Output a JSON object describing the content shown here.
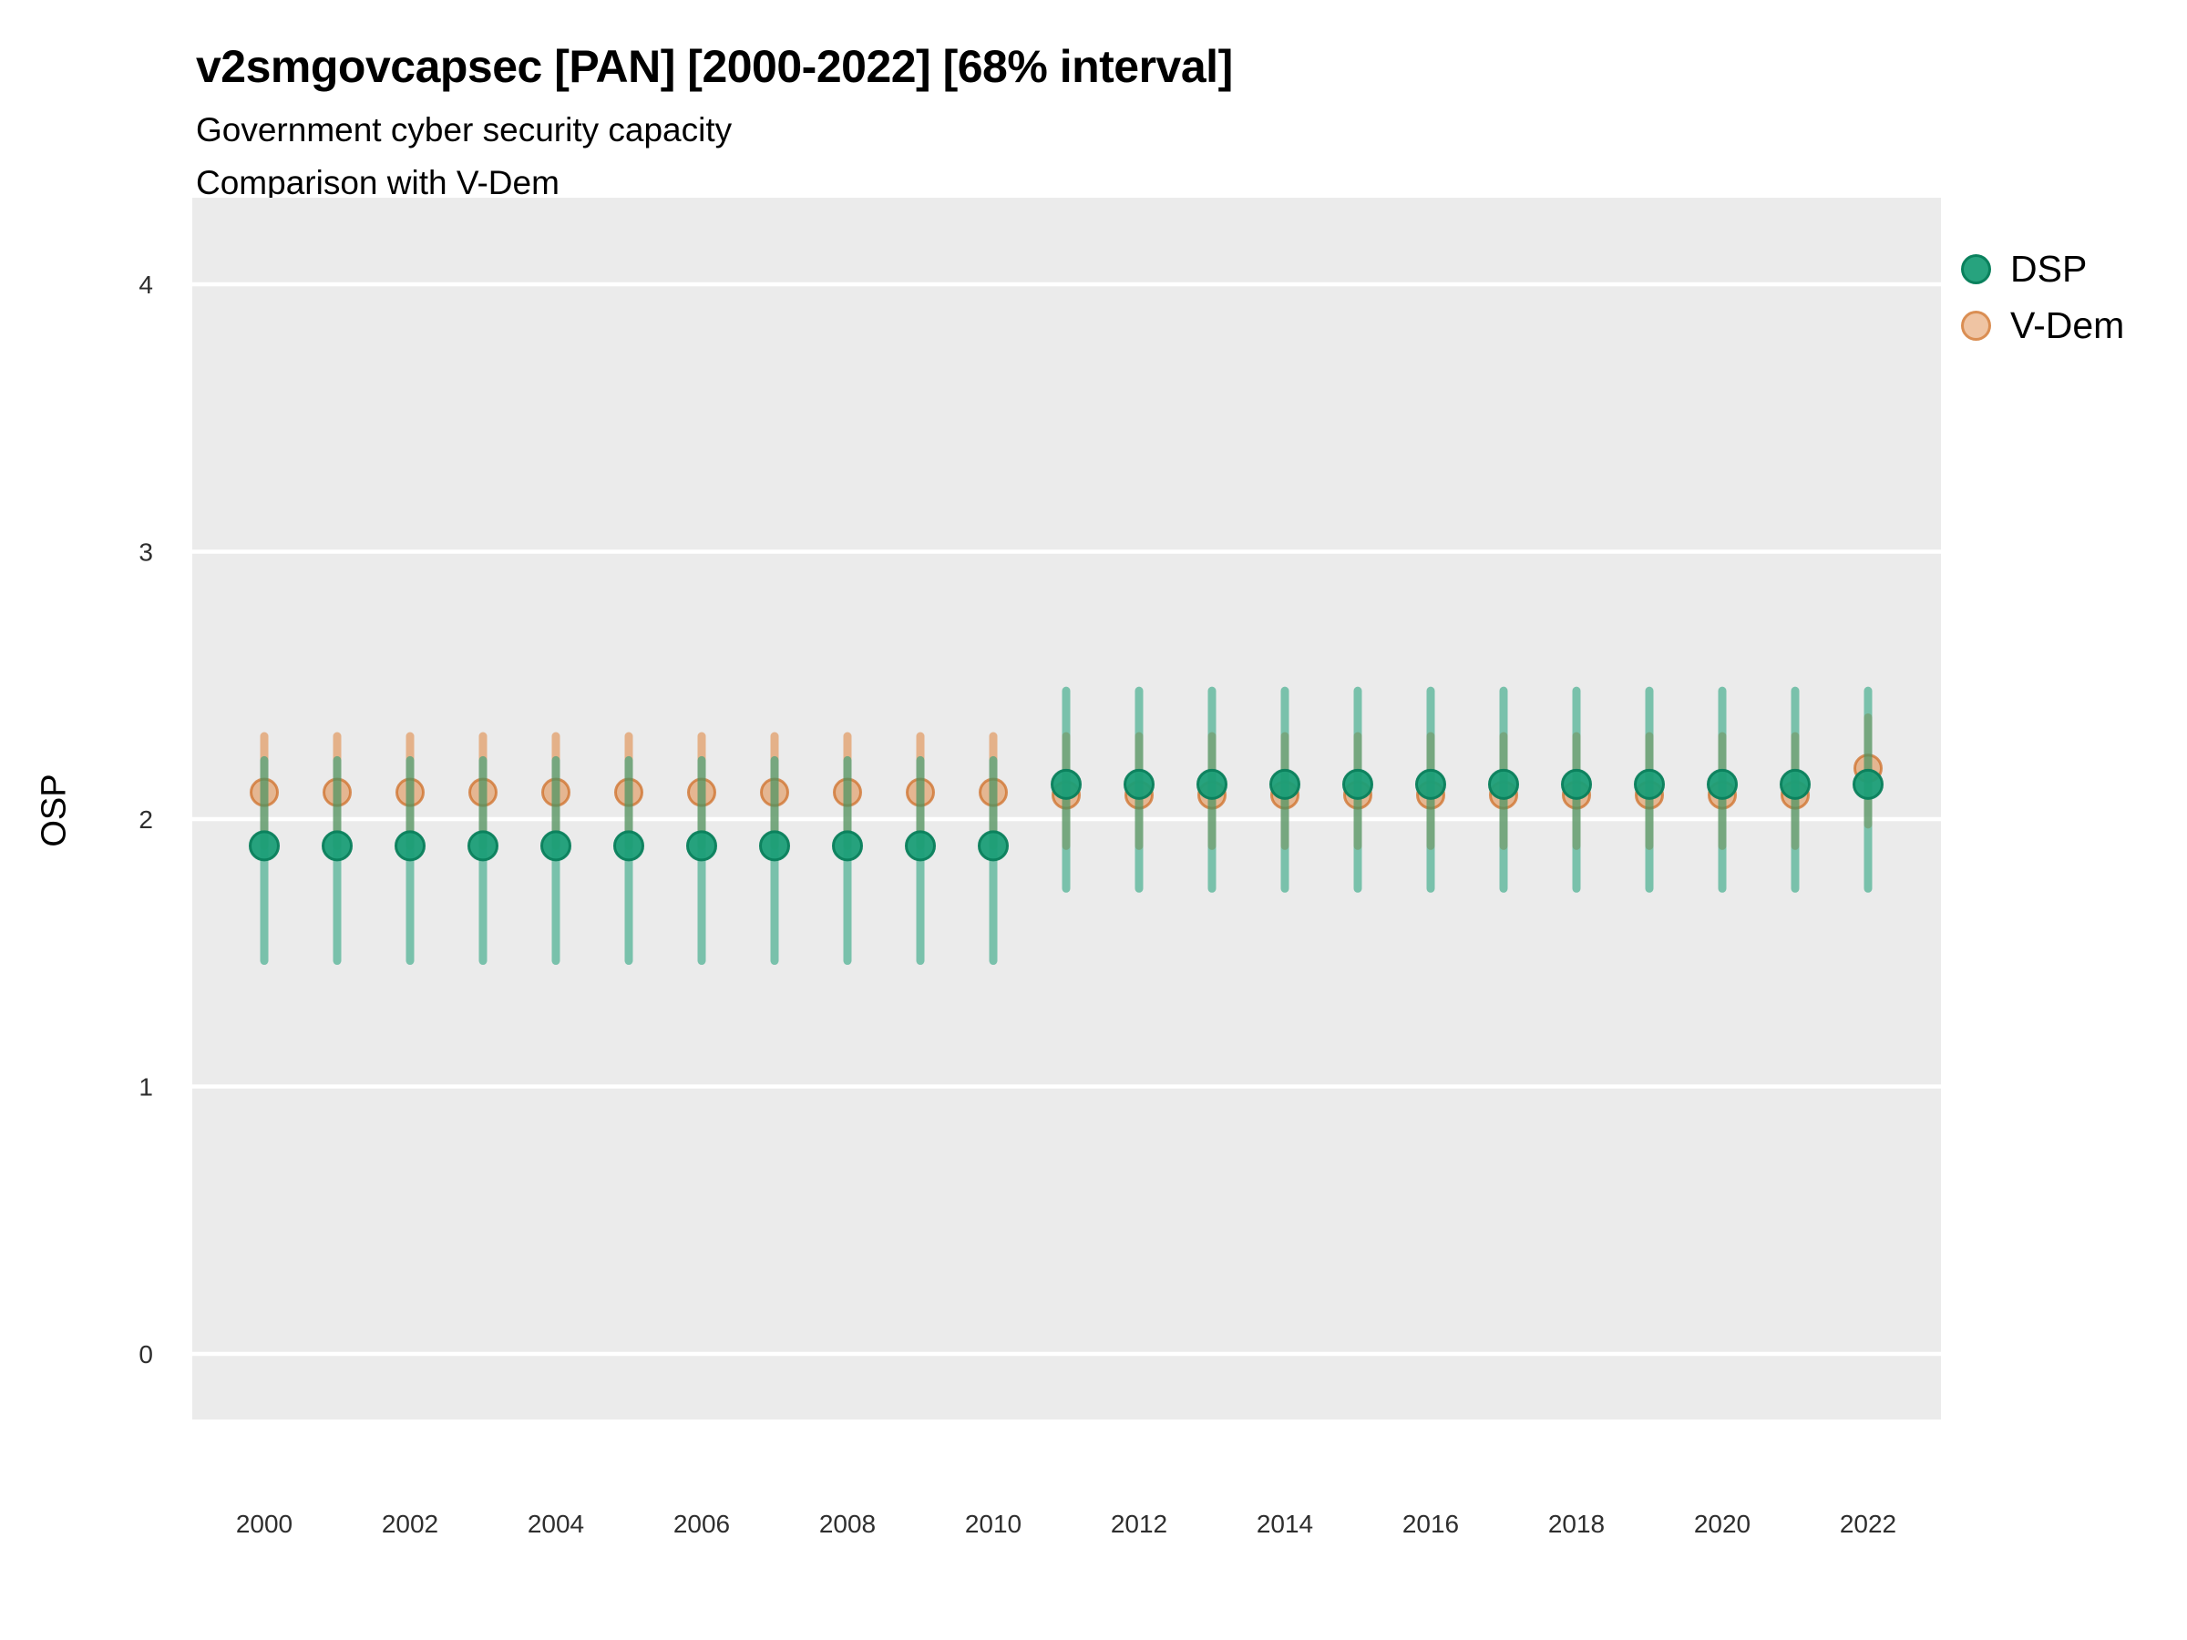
{
  "header": {
    "title": "v2smgovcapsec [PAN] [2000-2022] [68% interval]",
    "subtitle1": "Government cyber security capacity",
    "subtitle2": "Comparison with V-Dem"
  },
  "legend": {
    "position": "right-top",
    "items": [
      {
        "label": "DSP",
        "color": "#1b9e77"
      },
      {
        "label": "V-Dem",
        "color": "#e08a47"
      }
    ]
  },
  "chart_data": {
    "type": "scatter",
    "title": "v2smgovcapsec [PAN] [2000-2022] [68% interval]",
    "subtitle": "Government cyber security capacity / Comparison with V-Dem",
    "interval": "68%",
    "xlabel": "",
    "ylabel": "OSP",
    "ylim": [
      0,
      4
    ],
    "yticks": [
      0,
      1,
      2,
      3,
      4
    ],
    "xticks": [
      2000,
      2002,
      2004,
      2006,
      2008,
      2010,
      2012,
      2014,
      2016,
      2018,
      2020,
      2022
    ],
    "grid": "horizontal-only",
    "x": [
      2000,
      2001,
      2002,
      2003,
      2004,
      2005,
      2006,
      2007,
      2008,
      2009,
      2010,
      2011,
      2012,
      2013,
      2014,
      2015,
      2016,
      2017,
      2018,
      2019,
      2020,
      2021,
      2022
    ],
    "series": [
      {
        "name": "DSP",
        "values": [
          1.9,
          1.9,
          1.9,
          1.9,
          1.9,
          1.9,
          1.9,
          1.9,
          1.9,
          1.9,
          1.9,
          2.13,
          2.13,
          2.13,
          2.13,
          2.13,
          2.13,
          2.13,
          2.13,
          2.13,
          2.13,
          2.13,
          2.13
        ],
        "lower": [
          1.47,
          1.47,
          1.47,
          1.47,
          1.47,
          1.47,
          1.47,
          1.47,
          1.47,
          1.47,
          1.47,
          1.74,
          1.74,
          1.74,
          1.74,
          1.74,
          1.74,
          1.74,
          1.74,
          1.74,
          1.74,
          1.74,
          1.74
        ],
        "upper": [
          2.22,
          2.22,
          2.22,
          2.22,
          2.22,
          2.22,
          2.22,
          2.22,
          2.22,
          2.22,
          2.22,
          2.48,
          2.48,
          2.48,
          2.48,
          2.48,
          2.48,
          2.48,
          2.48,
          2.48,
          2.48,
          2.48,
          2.48
        ]
      },
      {
        "name": "V-Dem",
        "values": [
          2.1,
          2.1,
          2.1,
          2.1,
          2.1,
          2.1,
          2.1,
          2.1,
          2.1,
          2.1,
          2.1,
          2.09,
          2.09,
          2.09,
          2.09,
          2.09,
          2.09,
          2.09,
          2.09,
          2.09,
          2.09,
          2.09,
          2.19
        ],
        "lower": [
          1.9,
          1.9,
          1.9,
          1.9,
          1.9,
          1.9,
          1.9,
          1.9,
          1.9,
          1.9,
          1.9,
          1.9,
          1.9,
          1.9,
          1.9,
          1.9,
          1.9,
          1.9,
          1.9,
          1.9,
          1.9,
          1.9,
          1.98
        ],
        "upper": [
          2.31,
          2.31,
          2.31,
          2.31,
          2.31,
          2.31,
          2.31,
          2.31,
          2.31,
          2.31,
          2.31,
          2.31,
          2.31,
          2.31,
          2.31,
          2.31,
          2.31,
          2.31,
          2.31,
          2.31,
          2.31,
          2.31,
          2.38
        ]
      }
    ]
  },
  "style": {
    "panel_bg": "#ebebeb",
    "gridline": "#ffffff",
    "tick_label_color": "#2e2e2e",
    "dsp_point_fill": "rgba(27,158,119,0.95)",
    "dsp_point_stroke": "rgba(10,128,92,0.95)",
    "dsp_bar": "rgba(27,158,119,0.55)",
    "vdem_point_fill": "rgba(224,138,71,0.55)",
    "vdem_point_stroke": "rgba(207,111,40,0.75)",
    "vdem_bar": "rgba(224,138,71,0.6)"
  }
}
